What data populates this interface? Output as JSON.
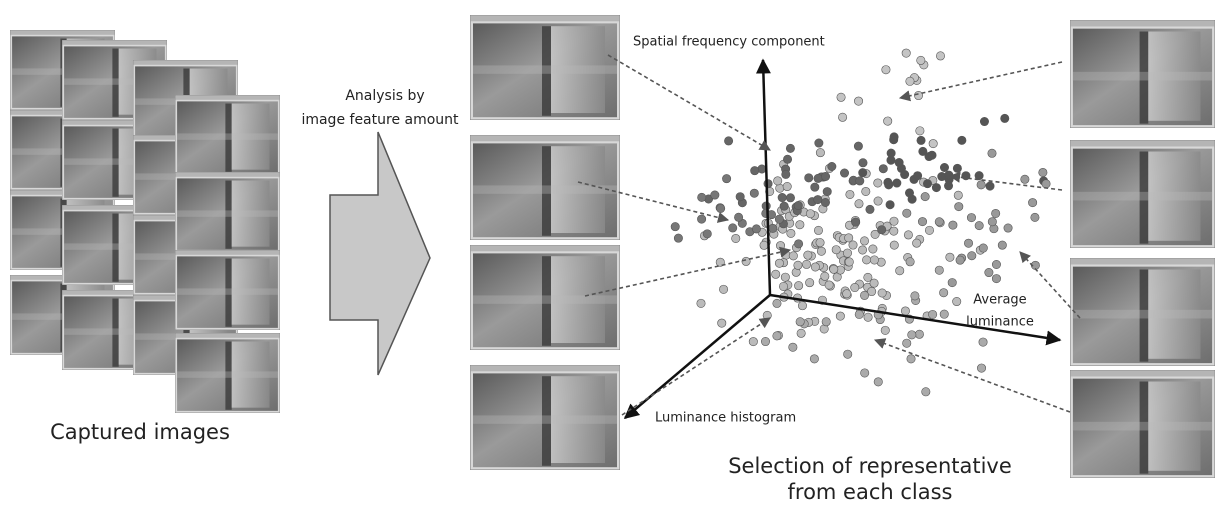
{
  "left": {
    "caption": "Captured images"
  },
  "arrow": {
    "lines": [
      "Analysis by",
      "image feature amount"
    ]
  },
  "plot": {
    "y_axis": "Spatial frequency component",
    "x_axis": [
      "Average",
      "luminance"
    ],
    "z_axis": "Luminance histogram"
  },
  "right": {
    "caption": [
      "Selection of representative",
      "from each class"
    ]
  }
}
